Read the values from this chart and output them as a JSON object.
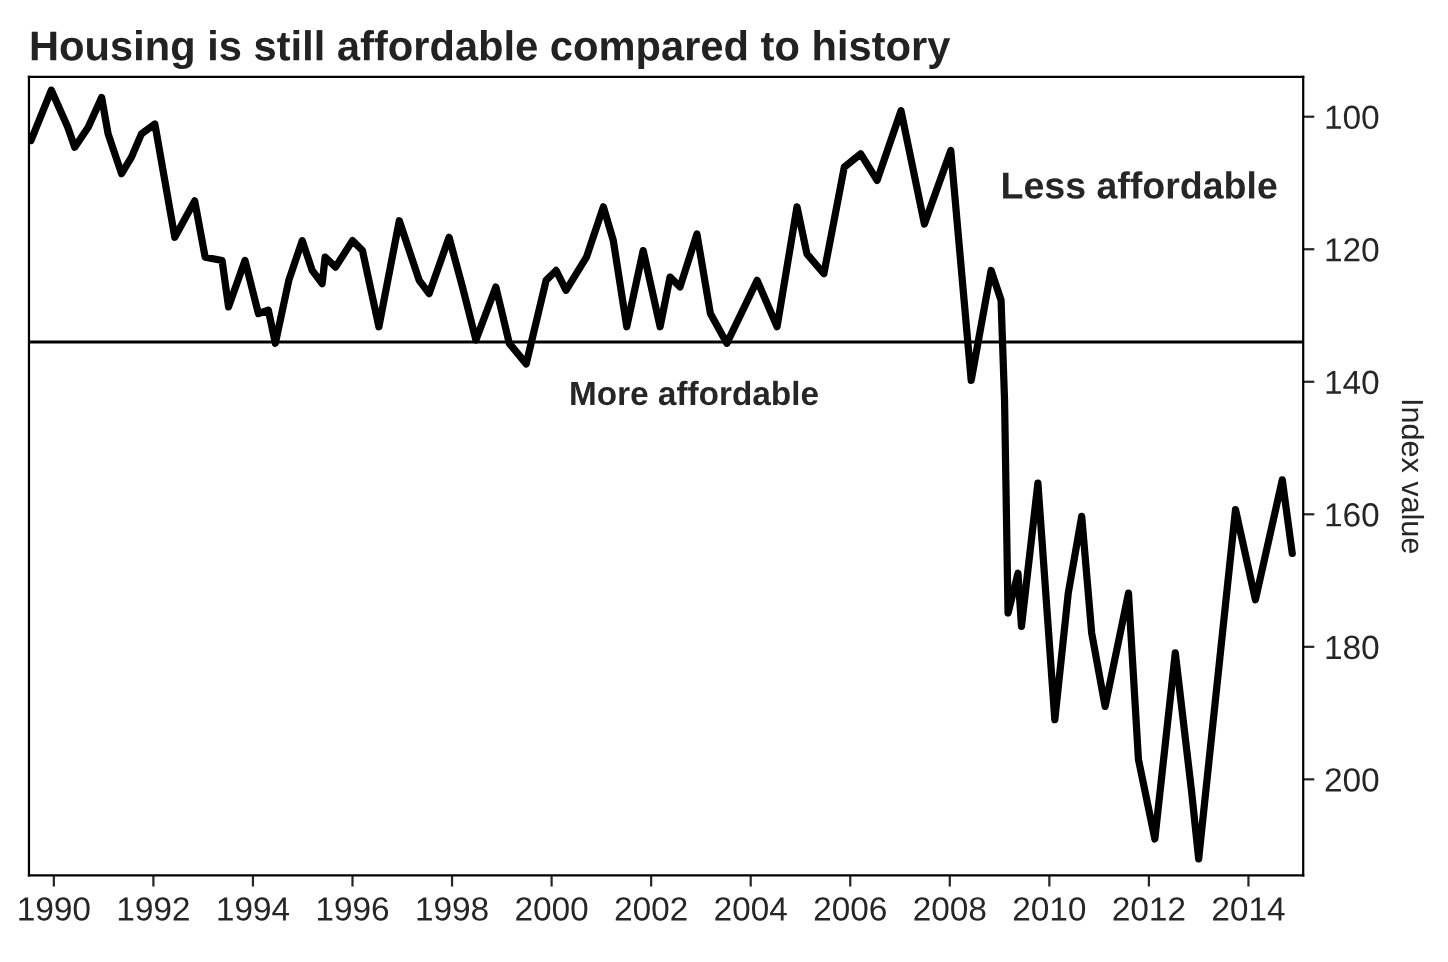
{
  "chart_data": {
    "type": "line",
    "title": "Housing is still affordable compared to history",
    "ylabel": "Index value",
    "annotations": [
      "Less affordable",
      "More affordable"
    ],
    "x": [
      1989.54,
      1989.95,
      1990.28,
      1990.42,
      1990.69,
      1990.96,
      1991.09,
      1991.36,
      1991.56,
      1991.76,
      1992.03,
      1992.43,
      1992.83,
      1993.04,
      1993.38,
      1993.51,
      1993.84,
      1994.11,
      1994.31,
      1994.45,
      1994.72,
      1994.99,
      1995.19,
      1995.39,
      1995.45,
      1995.66,
      1996.0,
      1996.2,
      1996.53,
      1996.94,
      1997.34,
      1997.54,
      1997.94,
      1998.21,
      1998.48,
      1998.88,
      1999.15,
      1999.49,
      1999.89,
      2000.09,
      2000.29,
      2000.7,
      2001.04,
      2001.24,
      2001.51,
      2001.84,
      2002.18,
      2002.38,
      2002.58,
      2002.92,
      2003.19,
      2003.52,
      2004.13,
      2004.53,
      2004.93,
      2005.13,
      2005.47,
      2005.88,
      2006.21,
      2006.54,
      2007.02,
      2007.49,
      2008.02,
      2008.43,
      2008.83,
      2009.03,
      2009.1,
      2009.17,
      2009.37,
      2009.44,
      2009.77,
      2010.11,
      2010.38,
      2010.65,
      2010.85,
      2011.12,
      2011.59,
      2011.79,
      2012.12,
      2012.53,
      2012.86,
      2013.0,
      2013.74,
      2014.14,
      2014.68,
      2014.88
    ],
    "series": [
      {
        "color": "#000000",
        "values": [
          103.6,
          96,
          101.6,
          104.6,
          101.6,
          97.1,
          102.6,
          108.6,
          106.1,
          102.6,
          101.1,
          118.2,
          112.7,
          121.2,
          121.7,
          128.7,
          121.7,
          129.7,
          129.2,
          134.2,
          124.7,
          118.7,
          123.2,
          125.2,
          121.2,
          122.7,
          118.7,
          120.2,
          131.7,
          115.7,
          124.7,
          126.7,
          118.2,
          125.7,
          133.7,
          125.7,
          134.2,
          137.3,
          124.7,
          123.2,
          126.2,
          121.2,
          113.6,
          118.7,
          131.7,
          120.2,
          131.7,
          124.2,
          125.7,
          117.7,
          129.7,
          134.2,
          124.7,
          131.7,
          113.6,
          120.7,
          123.7,
          107.6,
          105.6,
          109.6,
          99.1,
          116.2,
          105.1,
          139.8,
          123.2,
          127.7,
          142.8,
          174.9,
          168.9,
          176.9,
          155.3,
          191,
          171.9,
          160.3,
          177.9,
          189,
          171.9,
          197,
          209,
          180.9,
          202,
          212,
          159.3,
          172.9,
          154.8,
          165.9
        ]
      }
    ],
    "xlim": [
      1989.5,
      2015.1
    ],
    "ylim": [
      214.5,
      94
    ],
    "xticks": [
      1990,
      1992,
      1994,
      1996,
      1998,
      2000,
      2002,
      2004,
      2006,
      2008,
      2010,
      2012,
      2014
    ],
    "yticks": [
      100,
      120,
      140,
      160,
      180,
      200
    ],
    "ref_lines": [
      {
        "axis": "y",
        "value": 134,
        "color": "#000000"
      }
    ],
    "grid": false,
    "legend": false,
    "marker": "none",
    "line_style": "solid"
  }
}
